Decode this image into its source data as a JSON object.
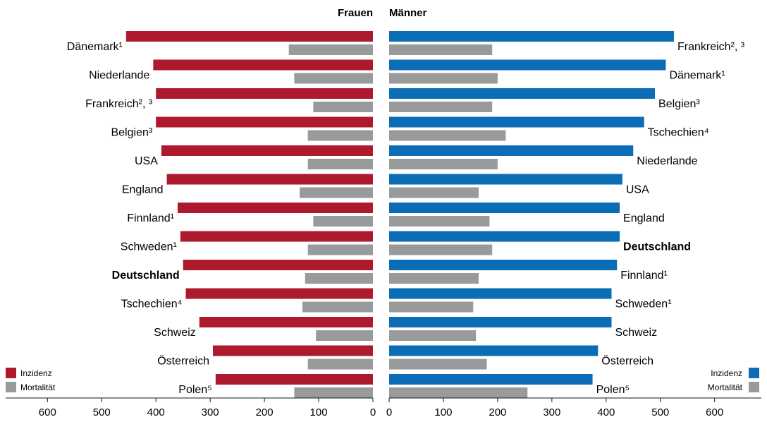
{
  "chart_data": [
    {
      "type": "bar",
      "orientation": "horizontal-left",
      "header": "Frauen",
      "categories": [
        "Dänemark¹",
        "Niederlande",
        "Frankreich², ³",
        "Belgien³",
        "USA",
        "England",
        "Finnland¹",
        "Schweden¹",
        "Deutschland",
        "Tschechien⁴",
        "Schweiz",
        "Österreich",
        "Polen⁵"
      ],
      "highlight_category": "Deutschland",
      "series": [
        {
          "name": "Inzidenz",
          "color": "#ad1a2e",
          "values": [
            455,
            405,
            400,
            400,
            390,
            380,
            360,
            355,
            350,
            345,
            320,
            295,
            290
          ]
        },
        {
          "name": "Mortalität",
          "color": "#999a9c",
          "values": [
            155,
            145,
            110,
            120,
            120,
            135,
            110,
            120,
            125,
            130,
            105,
            120,
            145
          ]
        }
      ],
      "xlim": [
        0,
        600
      ],
      "xticks": [
        "600",
        "500",
        "400",
        "300",
        "200",
        "100",
        "0"
      ],
      "legend_position": "bottom-left"
    },
    {
      "type": "bar",
      "orientation": "horizontal-right",
      "header": "Männer",
      "categories": [
        "Frankreich², ³",
        "Dänemark¹",
        "Belgien³",
        "Tschechien⁴",
        "Niederlande",
        "USA",
        "England",
        "Deutschland",
        "Finnland¹",
        "Schweden¹",
        "Schweiz",
        "Österreich",
        "Polen⁵"
      ],
      "highlight_category": "Deutschland",
      "series": [
        {
          "name": "Inzidenz",
          "color": "#0b6db5",
          "values": [
            525,
            510,
            490,
            470,
            450,
            430,
            425,
            425,
            420,
            410,
            410,
            385,
            375
          ]
        },
        {
          "name": "Mortalität",
          "color": "#999a9c",
          "values": [
            190,
            200,
            190,
            215,
            200,
            165,
            185,
            190,
            165,
            155,
            160,
            180,
            255
          ]
        }
      ],
      "xlim": [
        0,
        600
      ],
      "xticks": [
        "0",
        "100",
        "200",
        "300",
        "400",
        "500",
        "600"
      ],
      "legend_position": "bottom-right"
    }
  ]
}
